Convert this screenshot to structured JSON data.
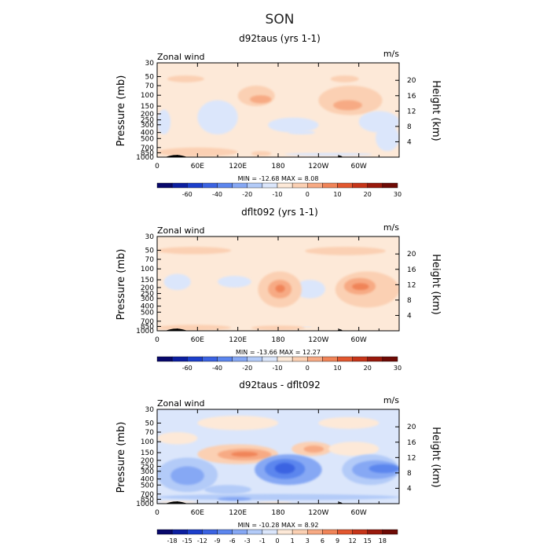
{
  "page": {
    "title": "SON"
  },
  "chart_data": [
    {
      "type": "heatmap",
      "title": "d92taus (yrs 1-1)",
      "field_label": "Zonal wind",
      "units": "m/s",
      "ylabel": "Pressure (mb)",
      "ylabel_right": "Height (km)",
      "x_ticks": [
        "0",
        "60E",
        "120E",
        "180",
        "120W",
        "60W"
      ],
      "y_ticks": [
        "30",
        "50",
        "70",
        "100",
        "150",
        "200",
        "250",
        "300",
        "400",
        "500",
        "700",
        "850",
        "1000"
      ],
      "y_ticks_right": [
        "20",
        "16",
        "12",
        "8",
        "4"
      ],
      "stats": "MIN = -12.68   MAX =   8.08",
      "colorbar": {
        "labels": [
          "-60",
          "-40",
          "-20",
          "-10",
          "0",
          "10",
          "20",
          "30"
        ],
        "colors": [
          "#08086b",
          "#0c1fa0",
          "#1c3fcb",
          "#3b63e2",
          "#5c86ee",
          "#86a8f4",
          "#b3cbf8",
          "#dbe6fb",
          "#fde9d8",
          "#fbd0b3",
          "#f7aa84",
          "#f08458",
          "#e2572f",
          "#c63519",
          "#99190c",
          "#6e0a05"
        ]
      },
      "regions": [
        {
          "level": 1,
          "lon": [
            0,
            360
          ],
          "p": [
            30,
            1000
          ]
        },
        {
          "level": 2,
          "lon": [
            15,
            70
          ],
          "p": [
            48,
            62
          ]
        },
        {
          "level": 2,
          "lon": [
            258,
            300
          ],
          "p": [
            48,
            62
          ]
        },
        {
          "level": 2,
          "lon": [
            120,
            175
          ],
          "p": [
            70,
            150
          ]
        },
        {
          "level": 2,
          "lon": [
            240,
            335
          ],
          "p": [
            70,
            210
          ]
        },
        {
          "level": 3,
          "lon": [
            138,
            170
          ],
          "p": [
            100,
            135
          ]
        },
        {
          "level": 3,
          "lon": [
            262,
            305
          ],
          "p": [
            120,
            175
          ]
        },
        {
          "level": 0,
          "lon": [
            60,
            120
          ],
          "p": [
            120,
            430
          ]
        },
        {
          "level": 0,
          "lon": [
            0,
            20
          ],
          "p": [
            170,
            430
          ]
        },
        {
          "level": 0,
          "lon": [
            165,
            240
          ],
          "p": [
            230,
            400
          ]
        },
        {
          "level": 0,
          "lon": [
            195,
            235
          ],
          "p": [
            370,
            430
          ]
        },
        {
          "level": 0,
          "lon": [
            300,
            360
          ],
          "p": [
            180,
            400
          ]
        },
        {
          "level": 0,
          "lon": [
            325,
            360
          ],
          "p": [
            300,
            800
          ]
        },
        {
          "level": 0,
          "lon": [
            190,
            320
          ],
          "p": [
            850,
            950
          ]
        },
        {
          "level": 2,
          "lon": [
            0,
            120
          ],
          "p": [
            700,
            980
          ]
        },
        {
          "level": 2,
          "lon": [
            140,
            170
          ],
          "p": [
            800,
            960
          ]
        }
      ],
      "terrain": [
        {
          "lon": [
            12,
            45
          ],
          "p": 900
        },
        {
          "lon": [
            268,
            276
          ],
          "p": 950
        }
      ]
    },
    {
      "type": "heatmap",
      "title": "dflt092 (yrs 1-1)",
      "field_label": "Zonal wind",
      "units": "m/s",
      "ylabel": "Pressure (mb)",
      "ylabel_right": "Height (km)",
      "x_ticks": [
        "0",
        "60E",
        "120E",
        "180",
        "120W",
        "60W"
      ],
      "y_ticks": [
        "30",
        "50",
        "70",
        "100",
        "150",
        "200",
        "250",
        "300",
        "400",
        "500",
        "700",
        "850",
        "1000"
      ],
      "y_ticks_right": [
        "20",
        "16",
        "12",
        "8",
        "4"
      ],
      "stats": "MIN = -13.66   MAX =  12.27",
      "colorbar": {
        "labels": [
          "-60",
          "-40",
          "-20",
          "-10",
          "0",
          "10",
          "20",
          "30"
        ],
        "colors": [
          "#08086b",
          "#0c1fa0",
          "#1c3fcb",
          "#3b63e2",
          "#5c86ee",
          "#86a8f4",
          "#b3cbf8",
          "#dbe6fb",
          "#fde9d8",
          "#fbd0b3",
          "#f7aa84",
          "#f08458",
          "#e2572f",
          "#c63519",
          "#99190c",
          "#6e0a05"
        ]
      },
      "regions": [
        {
          "level": 1,
          "lon": [
            0,
            360
          ],
          "p": [
            30,
            1000
          ]
        },
        {
          "level": 2,
          "lon": [
            0,
            110
          ],
          "p": [
            44,
            58
          ]
        },
        {
          "level": 2,
          "lon": [
            220,
            340
          ],
          "p": [
            44,
            60
          ]
        },
        {
          "level": 0,
          "lon": [
            10,
            50
          ],
          "p": [
            120,
            220
          ]
        },
        {
          "level": 0,
          "lon": [
            90,
            140
          ],
          "p": [
            130,
            200
          ]
        },
        {
          "level": 0,
          "lon": [
            205,
            250
          ],
          "p": [
            150,
            300
          ]
        },
        {
          "level": 2,
          "lon": [
            150,
            215
          ],
          "p": [
            110,
            420
          ]
        },
        {
          "level": 3,
          "lon": [
            165,
            200
          ],
          "p": [
            150,
            300
          ]
        },
        {
          "level": 4,
          "lon": [
            176,
            190
          ],
          "p": [
            180,
            240
          ]
        },
        {
          "level": 2,
          "lon": [
            265,
            360
          ],
          "p": [
            110,
            420
          ]
        },
        {
          "level": 3,
          "lon": [
            278,
            325
          ],
          "p": [
            140,
            260
          ]
        },
        {
          "level": 4,
          "lon": [
            290,
            315
          ],
          "p": [
            170,
            220
          ]
        },
        {
          "level": 2,
          "lon": [
            0,
            110
          ],
          "p": [
            800,
            990
          ]
        },
        {
          "level": 2,
          "lon": [
            140,
            220
          ],
          "p": [
            820,
            980
          ]
        },
        {
          "level": 0,
          "lon": [
            215,
            230
          ],
          "p": [
            850,
            880
          ]
        }
      ],
      "terrain": [
        {
          "lon": [
            12,
            45
          ],
          "p": 900
        },
        {
          "lon": [
            268,
            276
          ],
          "p": 950
        }
      ]
    },
    {
      "type": "heatmap",
      "title": "d92taus - dflt092",
      "field_label": "Zonal wind",
      "units": "m/s",
      "ylabel": "Pressure (mb)",
      "ylabel_right": "Height (km)",
      "x_ticks": [
        "0",
        "60E",
        "120E",
        "180",
        "120W",
        "60W"
      ],
      "y_ticks": [
        "30",
        "50",
        "70",
        "100",
        "150",
        "200",
        "250",
        "300",
        "400",
        "500",
        "700",
        "850",
        "1000"
      ],
      "y_ticks_right": [
        "20",
        "16",
        "12",
        "8",
        "4"
      ],
      "stats": "MIN = -10.28   MAX =   8.92",
      "colorbar": {
        "labels": [
          "-18",
          "-15",
          "-12",
          "-9",
          "-6",
          "-3",
          "-1",
          "0",
          "1",
          "3",
          "6",
          "9",
          "12",
          "15",
          "18"
        ],
        "colors": [
          "#08086b",
          "#0c1fa0",
          "#1c3fcb",
          "#3b63e2",
          "#5c86ee",
          "#86a8f4",
          "#b3cbf8",
          "#dbe6fb",
          "#fde9d8",
          "#fbd0b3",
          "#f7aa84",
          "#f08458",
          "#e2572f",
          "#c63519",
          "#99190c",
          "#6e0a05"
        ]
      },
      "regions": [
        {
          "level": 0,
          "lon": [
            0,
            360
          ],
          "p": [
            30,
            1000
          ]
        },
        {
          "level": 1,
          "lon": [
            60,
            180
          ],
          "p": [
            38,
            65
          ]
        },
        {
          "level": 1,
          "lon": [
            240,
            330
          ],
          "p": [
            40,
            62
          ]
        },
        {
          "level": 1,
          "lon": [
            0,
            60
          ],
          "p": [
            70,
            110
          ]
        },
        {
          "level": 2,
          "lon": [
            60,
            180
          ],
          "p": [
            110,
            230
          ]
        },
        {
          "level": 3,
          "lon": [
            90,
            170
          ],
          "p": [
            130,
            200
          ]
        },
        {
          "level": 4,
          "lon": [
            110,
            150
          ],
          "p": [
            145,
            175
          ]
        },
        {
          "level": 2,
          "lon": [
            200,
            260
          ],
          "p": [
            100,
            170
          ]
        },
        {
          "level": 3,
          "lon": [
            218,
            248
          ],
          "p": [
            115,
            150
          ]
        },
        {
          "level": 1,
          "lon": [
            255,
            330
          ],
          "p": [
            100,
            170
          ]
        },
        {
          "level": -1,
          "lon": [
            0,
            90
          ],
          "p": [
            180,
            650
          ]
        },
        {
          "level": -2,
          "lon": [
            20,
            70
          ],
          "p": [
            250,
            500
          ]
        },
        {
          "level": -1,
          "lon": [
            70,
            140
          ],
          "p": [
            500,
            700
          ]
        },
        {
          "level": -2,
          "lon": [
            145,
            245
          ],
          "p": [
            160,
            500
          ]
        },
        {
          "level": -3,
          "lon": [
            160,
            220
          ],
          "p": [
            190,
            400
          ]
        },
        {
          "level": -4,
          "lon": [
            175,
            205
          ],
          "p": [
            220,
            330
          ]
        },
        {
          "level": -1,
          "lon": [
            275,
            360
          ],
          "p": [
            160,
            500
          ]
        },
        {
          "level": -2,
          "lon": [
            290,
            360
          ],
          "p": [
            200,
            400
          ]
        },
        {
          "level": -3,
          "lon": [
            315,
            360
          ],
          "p": [
            230,
            320
          ]
        },
        {
          "level": -1,
          "lon": [
            0,
            360
          ],
          "p": [
            700,
            880
          ]
        },
        {
          "level": -2,
          "lon": [
            90,
            140
          ],
          "p": [
            780,
            900
          ]
        },
        {
          "level": 1,
          "lon": [
            0,
            60
          ],
          "p": [
            900,
            980
          ]
        },
        {
          "level": 1,
          "lon": [
            150,
            200
          ],
          "p": [
            920,
            990
          ]
        }
      ],
      "terrain": [
        {
          "lon": [
            12,
            45
          ],
          "p": 900
        },
        {
          "lon": [
            268,
            276
          ],
          "p": 950
        }
      ]
    }
  ]
}
